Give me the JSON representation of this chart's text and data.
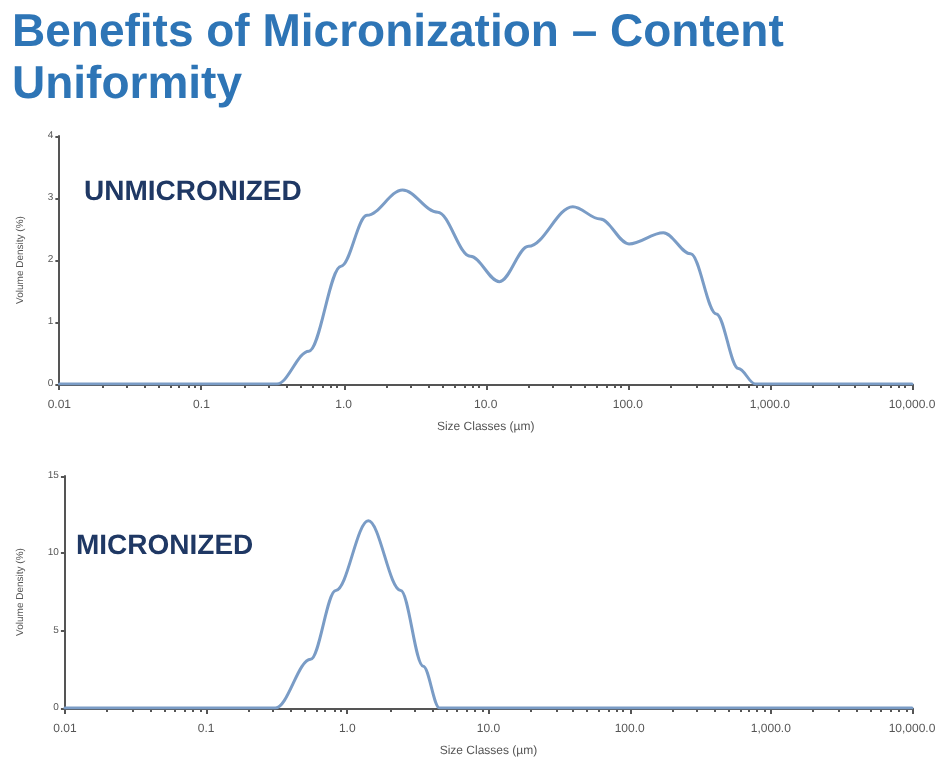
{
  "chart_data": [
    {
      "type": "line",
      "title": "Benefits of Micronization – Content Uniformity",
      "xlabel": "Size Classes (µm)",
      "ylabel": "Volume Density (%)",
      "annotations": [
        "UNMICRONIZED"
      ],
      "log": "x",
      "grid": false,
      "marker": "none",
      "color": "#7a9cc6",
      "x": [
        0.01,
        0.34,
        0.57,
        0.96,
        1.46,
        2.6,
        4.6,
        7.8,
        12.5,
        20,
        41,
        64,
        102,
        178,
        277,
        420,
        600,
        790,
        10000
      ],
      "values": [
        0,
        0,
        0.53,
        1.9,
        2.72,
        3.13,
        2.77,
        2.06,
        1.65,
        2.22,
        2.86,
        2.66,
        2.26,
        2.44,
        2.1,
        1.13,
        0.25,
        0,
        0
      ],
      "xlim": [
        0.01,
        10000
      ],
      "xticks": [
        {
          "value": 0.01,
          "label": "0.01"
        },
        {
          "value": 0.1,
          "label": "0.1"
        },
        {
          "value": 1,
          "label": "1.0"
        },
        {
          "value": 10,
          "label": "10.0"
        },
        {
          "value": 100,
          "label": "100.0"
        },
        {
          "value": 1000,
          "label": "1,000.0"
        },
        {
          "value": 10000,
          "label": "10,000.0"
        }
      ],
      "ylim": [
        0,
        4
      ],
      "yticks": [
        0,
        1,
        2,
        3,
        4
      ]
    },
    {
      "type": "line",
      "xlabel": "Size Classes (µm)",
      "ylabel": "Volume Density (%)",
      "annotations": [
        "MICRONIZED"
      ],
      "log": "x",
      "grid": false,
      "marker": "none",
      "color": "#7a9cc6",
      "x": [
        0.01,
        0.31,
        0.55,
        0.83,
        1.41,
        2.39,
        3.45,
        4.5,
        10000
      ],
      "values": [
        0,
        0,
        3.15,
        7.6,
        12.1,
        7.6,
        2.7,
        0,
        0
      ],
      "xlim": [
        0.01,
        10000
      ],
      "xticks": [
        {
          "value": 0.01,
          "label": "0.01"
        },
        {
          "value": 0.1,
          "label": "0.1"
        },
        {
          "value": 1,
          "label": "1.0"
        },
        {
          "value": 10,
          "label": "10.0"
        },
        {
          "value": 100,
          "label": "100.0"
        },
        {
          "value": 1000,
          "label": "1,000.0"
        },
        {
          "value": 10000,
          "label": "10,000.0"
        }
      ],
      "ylim": [
        0,
        15
      ],
      "yticks": [
        0,
        5,
        10,
        15
      ]
    }
  ]
}
